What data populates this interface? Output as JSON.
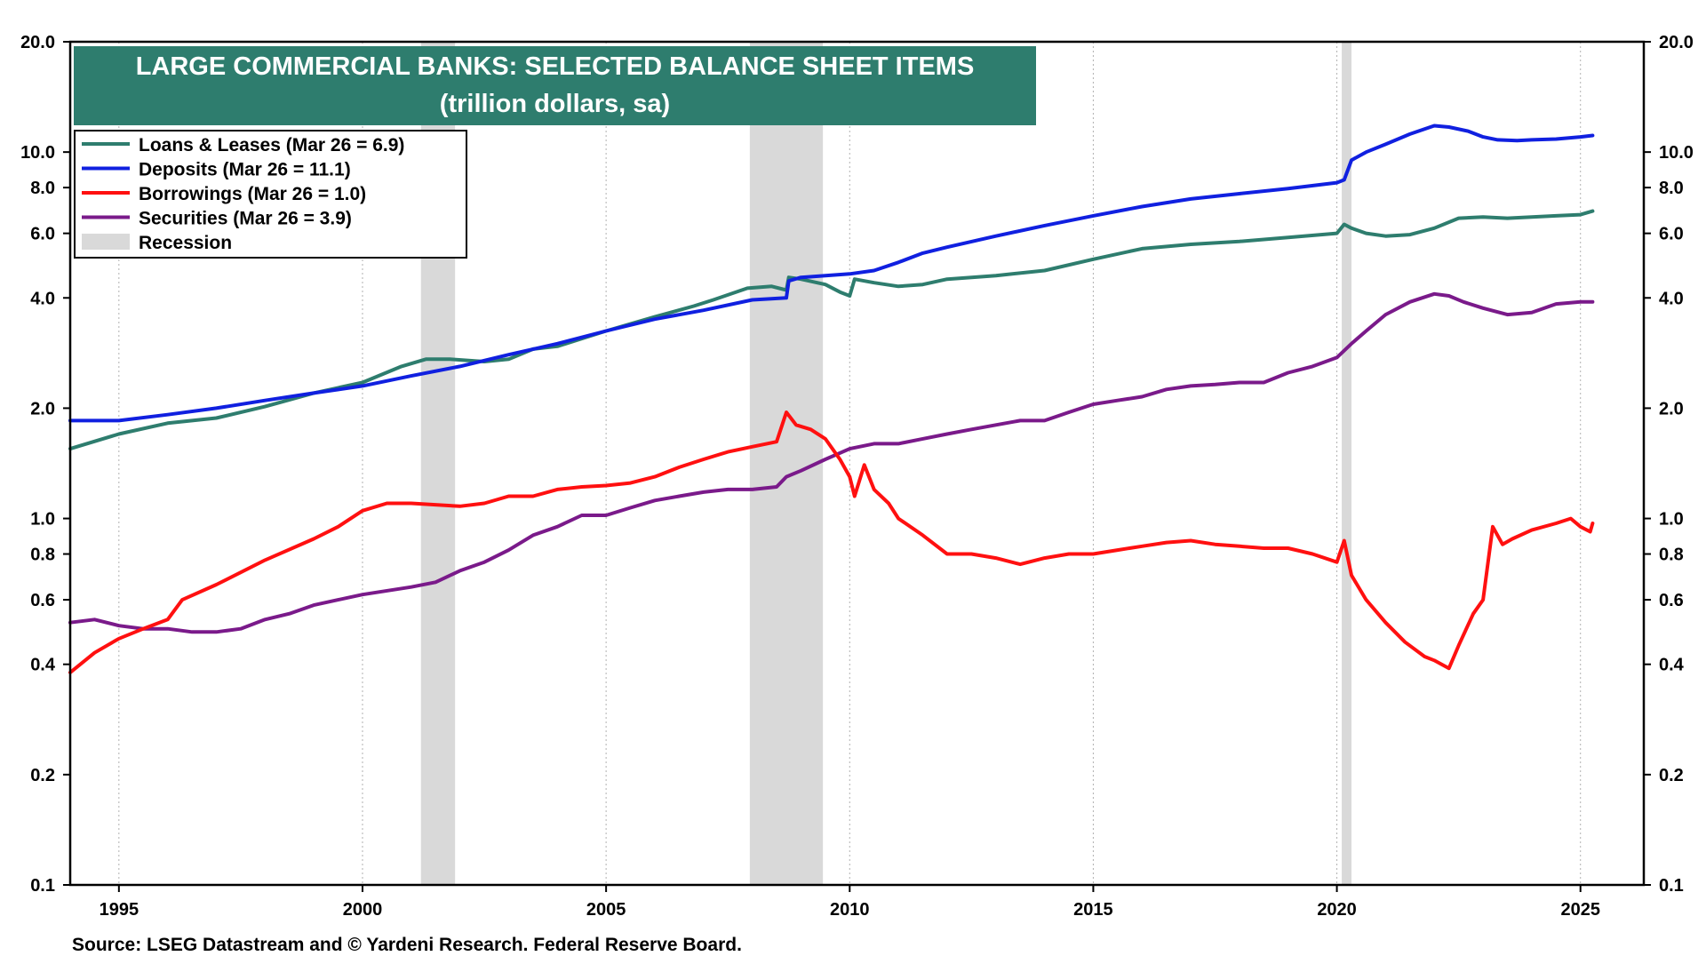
{
  "chart_data": {
    "type": "line",
    "title": "LARGE COMMERCIAL BANKS: SELECTED BALANCE SHEET ITEMS",
    "subtitle": "(trillion dollars, sa)",
    "y_scale": "log",
    "ylim": [
      0.1,
      20.0
    ],
    "y_ticks": [
      "20.0",
      "10.0",
      "8.0",
      "6.0",
      "4.0",
      "2.0",
      "1.0",
      "0.8",
      "0.6",
      "0.4",
      "0.2",
      "0.1"
    ],
    "xlim": [
      1994.0,
      2026.3
    ],
    "x_ticks": [
      "1995",
      "2000",
      "2005",
      "2010",
      "2015",
      "2020",
      "2025"
    ],
    "grid": true,
    "legend_position": "top-left",
    "recessions": [
      [
        2001.2,
        2001.9
      ],
      [
        2007.95,
        2009.45
      ],
      [
        2020.1,
        2020.3
      ]
    ],
    "recession_label": "Recession",
    "series": [
      {
        "name": "Loans & Leases (Mar 26 = 6.9)",
        "color": "#2e7d6e",
        "x": [
          1994.0,
          1995.0,
          1996.0,
          1997.0,
          1998.0,
          1999.0,
          2000.0,
          2000.8,
          2001.3,
          2001.8,
          2002.5,
          2003.0,
          2003.5,
          2004.0,
          2005.0,
          2006.0,
          2006.8,
          2007.2,
          2007.9,
          2008.4,
          2008.7,
          2008.75,
          2009.0,
          2009.5,
          2009.8,
          2010.0,
          2010.1,
          2010.5,
          2011.0,
          2011.5,
          2012.0,
          2013.0,
          2014.0,
          2015.0,
          2016.0,
          2017.0,
          2018.0,
          2019.0,
          2020.0,
          2020.15,
          2020.3,
          2020.6,
          2021.0,
          2021.5,
          2022.0,
          2022.5,
          2023.0,
          2023.5,
          2024.0,
          2024.5,
          2025.0,
          2025.25
        ],
        "values": [
          1.55,
          1.7,
          1.82,
          1.88,
          2.02,
          2.2,
          2.35,
          2.6,
          2.72,
          2.72,
          2.68,
          2.72,
          2.9,
          2.95,
          3.25,
          3.55,
          3.8,
          3.95,
          4.25,
          4.3,
          4.2,
          4.55,
          4.5,
          4.35,
          4.15,
          4.05,
          4.5,
          4.4,
          4.3,
          4.35,
          4.5,
          4.6,
          4.75,
          5.1,
          5.45,
          5.6,
          5.7,
          5.85,
          6.0,
          6.35,
          6.2,
          6.0,
          5.9,
          5.95,
          6.2,
          6.6,
          6.65,
          6.6,
          6.65,
          6.7,
          6.75,
          6.9
        ]
      },
      {
        "name": "Deposits (Mar 26 = 11.1)",
        "color": "#1020e0",
        "x": [
          1994.0,
          1995.0,
          1996.0,
          1997.0,
          1998.0,
          1999.0,
          2000.0,
          2001.0,
          2002.0,
          2003.0,
          2004.0,
          2005.0,
          2006.0,
          2007.0,
          2008.0,
          2008.7,
          2008.75,
          2009.0,
          2009.5,
          2010.0,
          2010.5,
          2011.0,
          2011.5,
          2012.0,
          2013.0,
          2014.0,
          2015.0,
          2016.0,
          2017.0,
          2018.0,
          2019.0,
          2020.0,
          2020.15,
          2020.3,
          2020.6,
          2021.0,
          2021.5,
          2022.0,
          2022.3,
          2022.7,
          2023.0,
          2023.3,
          2023.7,
          2024.0,
          2024.5,
          2025.0,
          2025.25
        ],
        "values": [
          1.85,
          1.85,
          1.92,
          2.0,
          2.1,
          2.2,
          2.3,
          2.45,
          2.6,
          2.8,
          3.0,
          3.25,
          3.5,
          3.7,
          3.95,
          4.0,
          4.45,
          4.55,
          4.6,
          4.65,
          4.75,
          5.0,
          5.3,
          5.5,
          5.9,
          6.3,
          6.7,
          7.1,
          7.45,
          7.7,
          7.95,
          8.25,
          8.4,
          9.5,
          10.0,
          10.5,
          11.2,
          11.8,
          11.7,
          11.4,
          11.0,
          10.8,
          10.75,
          10.8,
          10.85,
          11.0,
          11.1
        ]
      },
      {
        "name": "Borrowings (Mar 26 = 1.0)",
        "color": "#ff1010",
        "x": [
          1994.0,
          1994.5,
          1995.0,
          1995.5,
          1996.0,
          1996.3,
          1997.0,
          1998.0,
          1999.0,
          1999.5,
          2000.0,
          2000.5,
          2001.0,
          2002.0,
          2002.5,
          2003.0,
          2003.5,
          2004.0,
          2004.5,
          2005.0,
          2005.5,
          2006.0,
          2006.5,
          2007.0,
          2007.5,
          2008.0,
          2008.5,
          2008.7,
          2008.9,
          2009.2,
          2009.5,
          2009.8,
          2010.0,
          2010.1,
          2010.3,
          2010.5,
          2010.8,
          2011.0,
          2011.5,
          2012.0,
          2012.5,
          2013.0,
          2013.5,
          2014.0,
          2014.5,
          2015.0,
          2015.5,
          2016.0,
          2016.5,
          2017.0,
          2017.5,
          2018.0,
          2018.5,
          2019.0,
          2019.5,
          2020.0,
          2020.15,
          2020.3,
          2020.6,
          2021.0,
          2021.4,
          2021.8,
          2022.0,
          2022.3,
          2022.5,
          2022.8,
          2023.0,
          2023.2,
          2023.4,
          2023.6,
          2024.0,
          2024.5,
          2024.8,
          2025.0,
          2025.2,
          2025.25
        ],
        "values": [
          0.38,
          0.43,
          0.47,
          0.5,
          0.53,
          0.6,
          0.66,
          0.77,
          0.88,
          0.95,
          1.05,
          1.1,
          1.1,
          1.08,
          1.1,
          1.15,
          1.15,
          1.2,
          1.22,
          1.23,
          1.25,
          1.3,
          1.38,
          1.45,
          1.52,
          1.57,
          1.62,
          1.95,
          1.8,
          1.75,
          1.65,
          1.45,
          1.3,
          1.15,
          1.4,
          1.2,
          1.1,
          1.0,
          0.9,
          0.8,
          0.8,
          0.78,
          0.75,
          0.78,
          0.8,
          0.8,
          0.82,
          0.84,
          0.86,
          0.87,
          0.85,
          0.84,
          0.83,
          0.83,
          0.8,
          0.76,
          0.87,
          0.7,
          0.6,
          0.52,
          0.46,
          0.42,
          0.41,
          0.39,
          0.45,
          0.55,
          0.6,
          0.95,
          0.85,
          0.88,
          0.93,
          0.97,
          1.0,
          0.95,
          0.92,
          0.97
        ]
      },
      {
        "name": "Securities (Mar 26 = 3.9)",
        "color": "#7a1a8a",
        "x": [
          1994.0,
          1994.5,
          1995.0,
          1995.5,
          1996.0,
          1996.5,
          1997.0,
          1997.5,
          1998.0,
          1998.5,
          1999.0,
          1999.5,
          2000.0,
          2001.0,
          2001.5,
          2002.0,
          2002.5,
          2003.0,
          2003.5,
          2004.0,
          2004.5,
          2005.0,
          2005.5,
          2006.0,
          2006.5,
          2007.0,
          2007.5,
          2008.0,
          2008.5,
          2008.7,
          2009.0,
          2009.5,
          2010.0,
          2010.5,
          2011.0,
          2011.5,
          2012.0,
          2012.5,
          2013.0,
          2013.5,
          2014.0,
          2014.5,
          2015.0,
          2015.5,
          2016.0,
          2016.5,
          2017.0,
          2017.5,
          2018.0,
          2018.5,
          2019.0,
          2019.5,
          2020.0,
          2020.3,
          2020.6,
          2021.0,
          2021.5,
          2022.0,
          2022.3,
          2022.6,
          2023.0,
          2023.5,
          2024.0,
          2024.5,
          2025.0,
          2025.25
        ],
        "values": [
          0.52,
          0.53,
          0.51,
          0.5,
          0.5,
          0.49,
          0.49,
          0.5,
          0.53,
          0.55,
          0.58,
          0.6,
          0.62,
          0.65,
          0.67,
          0.72,
          0.76,
          0.82,
          0.9,
          0.95,
          1.02,
          1.02,
          1.07,
          1.12,
          1.15,
          1.18,
          1.2,
          1.2,
          1.22,
          1.3,
          1.35,
          1.45,
          1.55,
          1.6,
          1.6,
          1.65,
          1.7,
          1.75,
          1.8,
          1.85,
          1.85,
          1.95,
          2.05,
          2.1,
          2.15,
          2.25,
          2.3,
          2.32,
          2.35,
          2.35,
          2.5,
          2.6,
          2.75,
          3.0,
          3.25,
          3.6,
          3.9,
          4.1,
          4.05,
          3.9,
          3.75,
          3.6,
          3.65,
          3.85,
          3.9,
          3.9
        ]
      }
    ],
    "source": "Source: LSEG Datastream and © Yardeni Research. Federal Reserve Board."
  }
}
